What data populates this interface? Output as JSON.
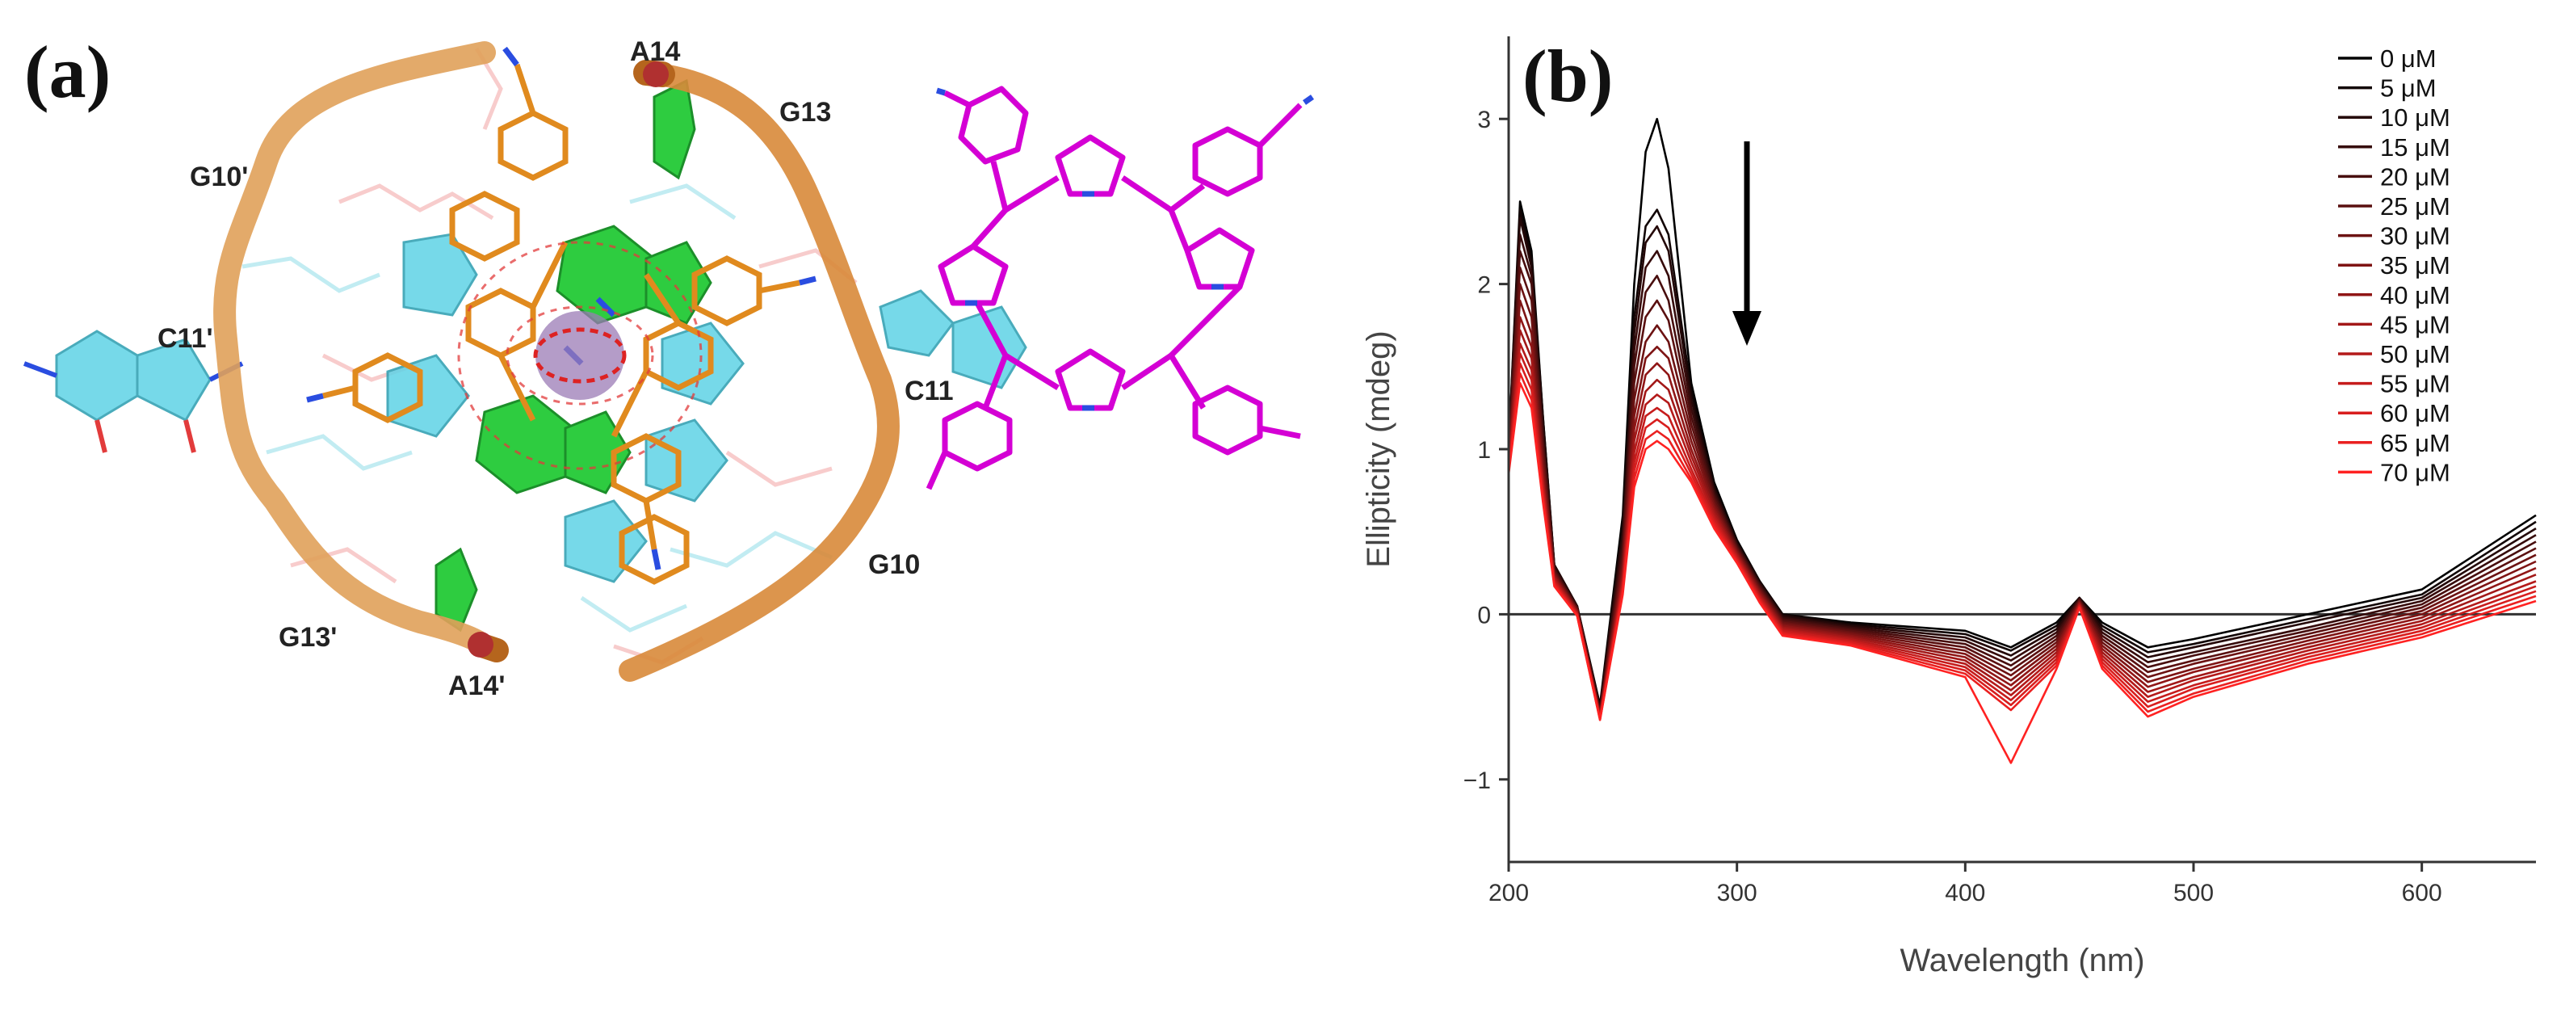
{
  "panel_a": {
    "label": "(a)",
    "residue_labels": [
      "A14",
      "G13",
      "G10'",
      "C11'",
      "C11",
      "G10",
      "G13'",
      "A14'"
    ],
    "colors": {
      "backbone": "#e0a15a",
      "backbone_dark": "#b5651d",
      "guanine": "#2ecc40",
      "cytosine": "#5fd3e6",
      "ligand": "#d400d4",
      "ligand_stick": "#e08a1e",
      "cation": "#9b7bb5",
      "hbond": "#e23b3b"
    }
  },
  "panel_b": {
    "label": "(b)",
    "chart_data": {
      "type": "line",
      "title": "",
      "xlabel": "Wavelength (nm)",
      "ylabel": "Ellipticity (mdeg)",
      "xlim": [
        200,
        650
      ],
      "ylim": [
        -1.5,
        3.5
      ],
      "x_ticks": [
        200,
        300,
        400,
        500,
        600
      ],
      "y_ticks": [
        -1,
        0,
        1,
        2,
        3
      ],
      "legend_position": "top-right",
      "zero_line": true,
      "annotation": "downward arrow near 305 nm indicating decreasing ellipticity",
      "x": [
        200,
        205,
        210,
        215,
        220,
        230,
        240,
        250,
        255,
        260,
        265,
        270,
        280,
        290,
        300,
        310,
        320,
        350,
        400,
        420,
        440,
        450,
        460,
        480,
        500,
        550,
        600,
        650
      ],
      "series": [
        {
          "name": "0 μM",
          "color": "#000000",
          "values": [
            1.0,
            2.5,
            2.2,
            1.2,
            0.3,
            0.05,
            -0.55,
            0.6,
            2.0,
            2.8,
            3.0,
            2.7,
            1.4,
            0.8,
            0.45,
            0.2,
            0.0,
            -0.05,
            -0.1,
            -0.2,
            -0.05,
            0.1,
            -0.05,
            -0.2,
            -0.15,
            0.0,
            0.15,
            0.6
          ]
        },
        {
          "name": "5 μM",
          "color": "#120505",
          "values": [
            1.0,
            2.45,
            2.15,
            1.2,
            0.3,
            0.05,
            -0.56,
            0.55,
            1.8,
            2.35,
            2.45,
            2.3,
            1.35,
            0.78,
            0.44,
            0.2,
            0.0,
            -0.06,
            -0.12,
            -0.22,
            -0.07,
            0.1,
            -0.07,
            -0.23,
            -0.18,
            -0.03,
            0.12,
            0.56
          ]
        },
        {
          "name": "10 μM",
          "color": "#240808",
          "values": [
            1.0,
            2.4,
            2.1,
            1.15,
            0.3,
            0.05,
            -0.57,
            0.5,
            1.7,
            2.25,
            2.35,
            2.2,
            1.3,
            0.76,
            0.43,
            0.19,
            -0.01,
            -0.07,
            -0.14,
            -0.25,
            -0.09,
            0.1,
            -0.09,
            -0.26,
            -0.2,
            -0.05,
            0.1,
            0.52
          ]
        },
        {
          "name": "15 μM",
          "color": "#360b0b",
          "values": [
            1.0,
            2.3,
            2.05,
            1.1,
            0.28,
            0.04,
            -0.58,
            0.45,
            1.6,
            2.1,
            2.2,
            2.05,
            1.25,
            0.74,
            0.42,
            0.18,
            -0.02,
            -0.08,
            -0.16,
            -0.28,
            -0.11,
            0.09,
            -0.11,
            -0.29,
            -0.23,
            -0.08,
            0.08,
            0.48
          ]
        },
        {
          "name": "20 μM",
          "color": "#480e0e",
          "values": [
            0.98,
            2.2,
            2.0,
            1.05,
            0.27,
            0.04,
            -0.59,
            0.4,
            1.5,
            1.95,
            2.05,
            1.9,
            1.2,
            0.72,
            0.41,
            0.17,
            -0.03,
            -0.09,
            -0.18,
            -0.31,
            -0.13,
            0.09,
            -0.13,
            -0.32,
            -0.25,
            -0.1,
            0.06,
            0.44
          ]
        },
        {
          "name": "25 μM",
          "color": "#5a1010",
          "values": [
            0.97,
            2.1,
            1.9,
            1.0,
            0.26,
            0.03,
            -0.6,
            0.36,
            1.4,
            1.8,
            1.9,
            1.78,
            1.15,
            0.7,
            0.4,
            0.16,
            -0.04,
            -0.1,
            -0.2,
            -0.34,
            -0.15,
            0.08,
            -0.15,
            -0.35,
            -0.28,
            -0.12,
            0.04,
            0.4
          ]
        },
        {
          "name": "30 μM",
          "color": "#6c1212",
          "values": [
            0.95,
            2.0,
            1.8,
            0.95,
            0.25,
            0.03,
            -0.6,
            0.32,
            1.3,
            1.65,
            1.75,
            1.65,
            1.1,
            0.68,
            0.39,
            0.15,
            -0.05,
            -0.11,
            -0.22,
            -0.37,
            -0.17,
            0.08,
            -0.17,
            -0.38,
            -0.3,
            -0.14,
            0.02,
            0.36
          ]
        },
        {
          "name": "35 μM",
          "color": "#7e1414",
          "values": [
            0.93,
            1.9,
            1.7,
            0.9,
            0.24,
            0.02,
            -0.61,
            0.28,
            1.2,
            1.55,
            1.62,
            1.55,
            1.05,
            0.66,
            0.38,
            0.14,
            -0.06,
            -0.12,
            -0.24,
            -0.4,
            -0.19,
            0.07,
            -0.19,
            -0.41,
            -0.33,
            -0.16,
            0.0,
            0.32
          ]
        },
        {
          "name": "40 μM",
          "color": "#901616",
          "values": [
            0.92,
            1.8,
            1.62,
            0.85,
            0.23,
            0.02,
            -0.61,
            0.25,
            1.12,
            1.45,
            1.52,
            1.45,
            1.0,
            0.64,
            0.37,
            0.13,
            -0.07,
            -0.13,
            -0.26,
            -0.43,
            -0.21,
            0.07,
            -0.21,
            -0.44,
            -0.35,
            -0.18,
            -0.02,
            0.28
          ]
        },
        {
          "name": "45 μM",
          "color": "#a21818",
          "values": [
            0.9,
            1.72,
            1.55,
            0.82,
            0.22,
            0.01,
            -0.62,
            0.22,
            1.05,
            1.35,
            1.42,
            1.36,
            0.96,
            0.62,
            0.36,
            0.12,
            -0.08,
            -0.14,
            -0.28,
            -0.46,
            -0.23,
            0.06,
            -0.23,
            -0.47,
            -0.38,
            -0.2,
            -0.04,
            0.24
          ]
        },
        {
          "name": "50 μM",
          "color": "#b41a1a",
          "values": [
            0.89,
            1.64,
            1.48,
            0.79,
            0.21,
            0.01,
            -0.62,
            0.2,
            0.98,
            1.27,
            1.33,
            1.28,
            0.92,
            0.6,
            0.35,
            0.11,
            -0.09,
            -0.15,
            -0.3,
            -0.49,
            -0.25,
            0.06,
            -0.25,
            -0.5,
            -0.4,
            -0.22,
            -0.06,
            0.2
          ]
        },
        {
          "name": "55 μM",
          "color": "#c61c1c",
          "values": [
            0.88,
            1.58,
            1.42,
            0.76,
            0.2,
            0.0,
            -0.63,
            0.18,
            0.92,
            1.2,
            1.25,
            1.2,
            0.88,
            0.58,
            0.34,
            0.1,
            -0.1,
            -0.16,
            -0.32,
            -0.52,
            -0.27,
            0.05,
            -0.27,
            -0.53,
            -0.43,
            -0.24,
            -0.08,
            0.17
          ]
        },
        {
          "name": "60 μM",
          "color": "#d81e1e",
          "values": [
            0.87,
            1.52,
            1.36,
            0.73,
            0.19,
            0.0,
            -0.63,
            0.16,
            0.87,
            1.13,
            1.18,
            1.13,
            0.85,
            0.56,
            0.33,
            0.09,
            -0.11,
            -0.17,
            -0.34,
            -0.55,
            -0.29,
            0.05,
            -0.29,
            -0.56,
            -0.45,
            -0.26,
            -0.1,
            0.14
          ]
        },
        {
          "name": "65 μM",
          "color": "#ea2020",
          "values": [
            0.86,
            1.46,
            1.3,
            0.7,
            0.18,
            -0.01,
            -0.64,
            0.14,
            0.82,
            1.06,
            1.11,
            1.06,
            0.82,
            0.54,
            0.32,
            0.08,
            -0.12,
            -0.18,
            -0.36,
            -0.58,
            -0.31,
            0.04,
            -0.31,
            -0.59,
            -0.48,
            -0.28,
            -0.12,
            0.11
          ]
        },
        {
          "name": "70 μM",
          "color": "#ff2222",
          "values": [
            0.85,
            1.4,
            1.25,
            0.68,
            0.17,
            -0.01,
            -0.64,
            0.12,
            0.77,
            1.0,
            1.05,
            1.0,
            0.8,
            0.52,
            0.31,
            0.07,
            -0.13,
            -0.19,
            -0.38,
            -0.9,
            -0.33,
            0.04,
            -0.33,
            -0.62,
            -0.5,
            -0.3,
            -0.14,
            0.08
          ]
        }
      ]
    }
  }
}
